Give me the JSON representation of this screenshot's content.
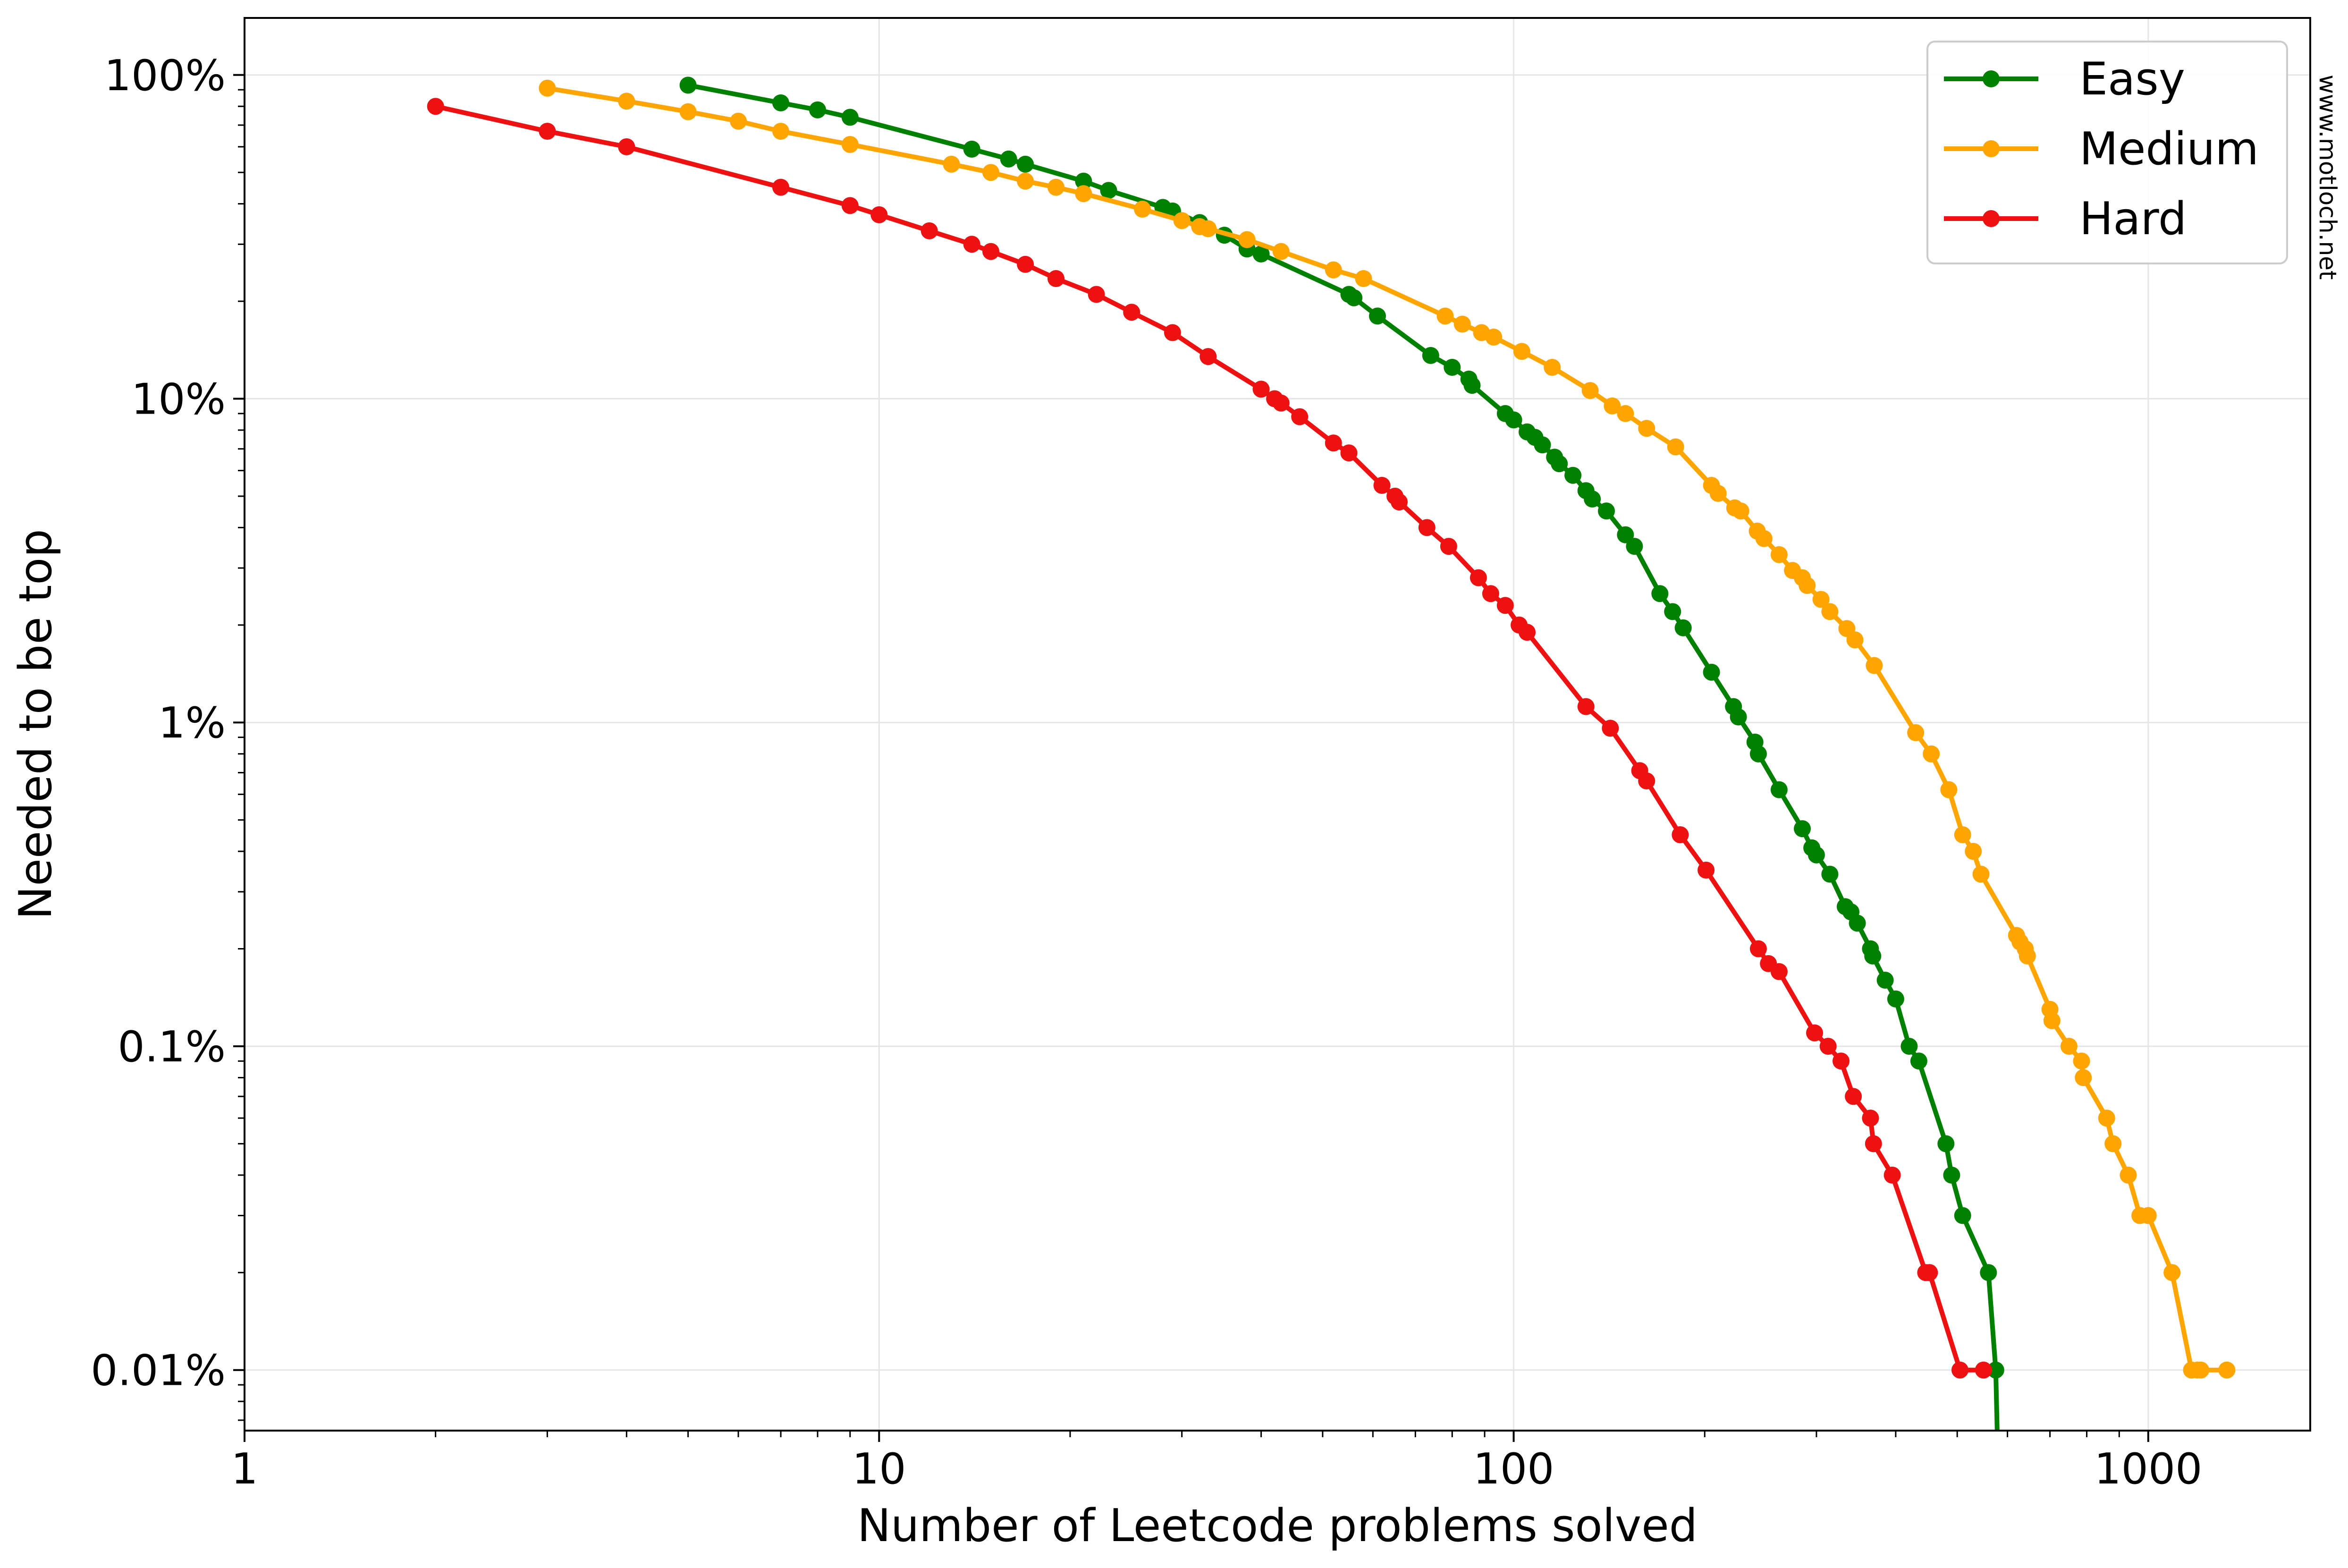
{
  "chart_data": {
    "type": "line",
    "title": "",
    "xlabel": "Number of Leetcode problems solved",
    "ylabel": "Needed to be top",
    "xscale": "log",
    "yscale": "log",
    "xlim": [
      1,
      1800
    ],
    "ylim": [
      0.0065,
      150
    ],
    "xticks": [
      {
        "value": 1,
        "label": "1"
      },
      {
        "value": 10,
        "label": "10"
      },
      {
        "value": 100,
        "label": "100"
      },
      {
        "value": 1000,
        "label": "1000"
      }
    ],
    "yticks": [
      {
        "value": 100,
        "label": "100%"
      },
      {
        "value": 10,
        "label": "10%"
      },
      {
        "value": 1,
        "label": "1%"
      },
      {
        "value": 0.1,
        "label": "0.1%"
      },
      {
        "value": 0.01,
        "label": "0.01%"
      }
    ],
    "grid": true,
    "legend_position": "top-right",
    "series": [
      {
        "name": "Easy",
        "color": "#008000",
        "x": [
          5,
          7,
          8,
          9,
          14,
          16,
          17,
          21,
          23,
          28,
          29,
          32,
          35,
          38,
          40,
          55,
          56,
          61,
          74,
          80,
          85,
          86,
          97,
          100,
          105,
          108,
          111,
          116,
          118,
          124,
          130,
          133,
          140,
          150,
          155,
          170,
          178,
          185,
          205,
          222,
          226,
          240,
          243,
          262,
          285,
          295,
          300,
          315,
          333,
          340,
          348,
          365,
          368,
          385,
          400,
          420,
          435,
          480,
          490,
          510,
          560,
          575,
          578
        ],
        "y": [
          93,
          82,
          78,
          74,
          59,
          55,
          53,
          47,
          44,
          39,
          38,
          35,
          32,
          29,
          28,
          21,
          20.5,
          18,
          13.6,
          12.5,
          11.5,
          11,
          9,
          8.6,
          7.9,
          7.6,
          7.2,
          6.6,
          6.3,
          5.8,
          5.2,
          4.9,
          4.5,
          3.8,
          3.5,
          2.5,
          2.2,
          1.96,
          1.43,
          1.12,
          1.04,
          0.87,
          0.8,
          0.62,
          0.47,
          0.41,
          0.39,
          0.34,
          0.27,
          0.26,
          0.24,
          0.2,
          0.19,
          0.16,
          0.14,
          0.1,
          0.09,
          0.05,
          0.04,
          0.03,
          0.02,
          0.01,
          0.0065
        ]
      },
      {
        "name": "Medium",
        "color": "#FFA500",
        "x": [
          3,
          4,
          5,
          6,
          7,
          9,
          13,
          15,
          17,
          19,
          21,
          26,
          30,
          32,
          33,
          38,
          43,
          52,
          58,
          78,
          83,
          89,
          93,
          103,
          115,
          132,
          143,
          150,
          162,
          180,
          205,
          210,
          223,
          228,
          242,
          248,
          262,
          275,
          285,
          290,
          305,
          315,
          335,
          345,
          370,
          430,
          455,
          485,
          510,
          530,
          545,
          620,
          628,
          640,
          645,
          700,
          705,
          750,
          785,
          790,
          860,
          880,
          930,
          970,
          1000,
          1090,
          1170,
          1195,
          1210,
          1330
        ],
        "y": [
          91,
          83,
          77,
          72,
          67,
          61,
          53,
          50,
          47,
          45,
          43,
          38.5,
          35.5,
          34,
          33.5,
          31,
          28.5,
          25,
          23.5,
          18,
          17,
          16,
          15.5,
          14,
          12.5,
          10.6,
          9.5,
          9,
          8.1,
          7.1,
          5.4,
          5.1,
          4.6,
          4.5,
          3.9,
          3.7,
          3.3,
          2.95,
          2.8,
          2.65,
          2.4,
          2.2,
          1.95,
          1.8,
          1.5,
          0.93,
          0.8,
          0.62,
          0.45,
          0.4,
          0.34,
          0.22,
          0.21,
          0.2,
          0.19,
          0.13,
          0.12,
          0.1,
          0.09,
          0.08,
          0.06,
          0.05,
          0.04,
          0.03,
          0.03,
          0.02,
          0.01,
          0.01,
          0.01,
          0.01
        ]
      },
      {
        "name": "Hard",
        "color": "#EE1111",
        "x": [
          2,
          3,
          4,
          7,
          9,
          10,
          12,
          14,
          15,
          17,
          19,
          22,
          25,
          29,
          33,
          40,
          42,
          43,
          46,
          52,
          55,
          62,
          65,
          66,
          73,
          79,
          88,
          92,
          97,
          102,
          105,
          130,
          142,
          158,
          162,
          183,
          201,
          243,
          252,
          262,
          298,
          313,
          328,
          343,
          365,
          369,
          395,
          446,
          452,
          505,
          550
        ],
        "y": [
          80,
          67,
          60,
          45,
          39.5,
          37,
          33,
          30,
          28.5,
          26,
          23.5,
          21,
          18.5,
          16,
          13.5,
          10.7,
          10,
          9.7,
          8.8,
          7.3,
          6.8,
          5.4,
          5,
          4.8,
          4,
          3.5,
          2.8,
          2.5,
          2.3,
          2.0,
          1.9,
          1.12,
          0.96,
          0.71,
          0.66,
          0.45,
          0.35,
          0.2,
          0.18,
          0.17,
          0.11,
          0.1,
          0.09,
          0.07,
          0.06,
          0.05,
          0.04,
          0.02,
          0.02,
          0.01,
          0.01
        ]
      }
    ]
  },
  "watermark": "www.motloch.net"
}
